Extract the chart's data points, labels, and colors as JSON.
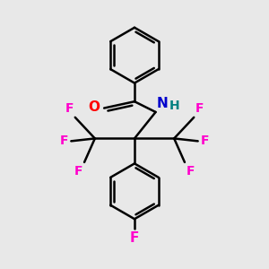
{
  "bg_color": "#e8e8e8",
  "bond_color": "#000000",
  "bond_width": 1.8,
  "F_color": "#ff00cc",
  "N_color": "#0000cc",
  "O_color": "#ff0000",
  "H_color": "#008080",
  "figsize": [
    3.0,
    3.0
  ],
  "dpi": 100,
  "xlim": [
    0,
    10
  ],
  "ylim": [
    0,
    10
  ]
}
